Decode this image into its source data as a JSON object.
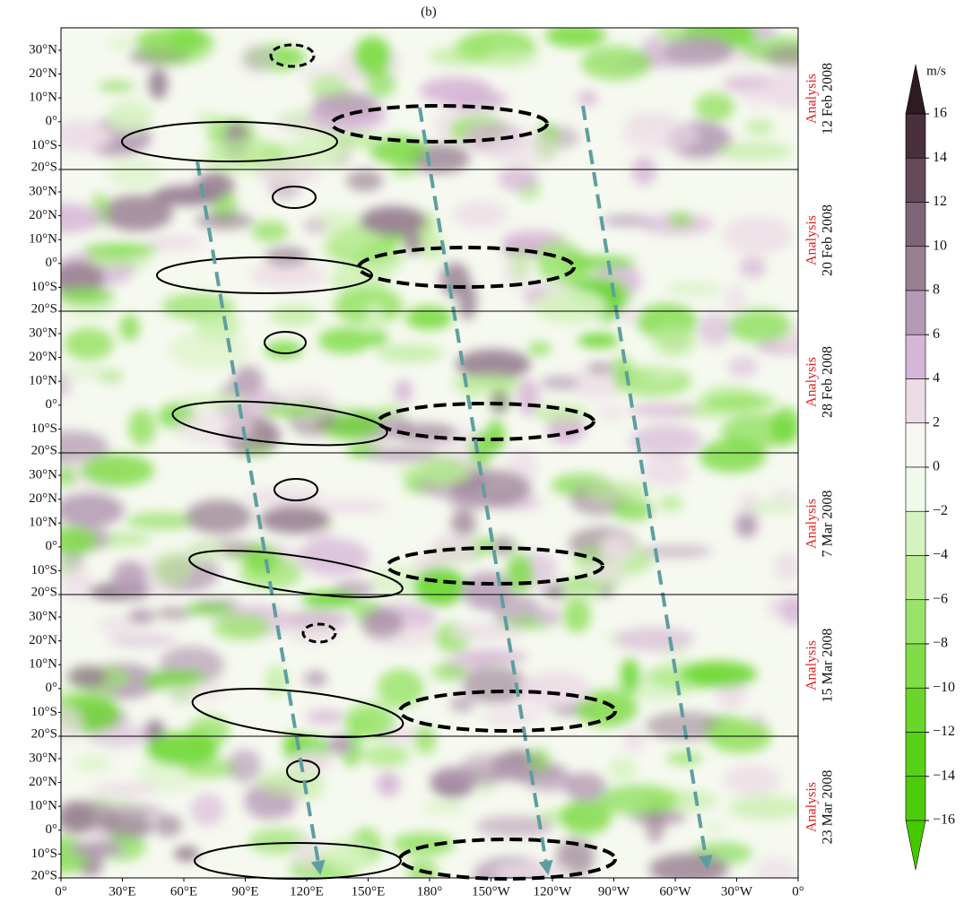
{
  "figure": {
    "title": "(b)",
    "lat_labels": [
      "30°N",
      "20°N",
      "10°N",
      "0°",
      "10°S",
      "20°S"
    ],
    "lon_labels": [
      "0°",
      "30°E",
      "60°E",
      "90°E",
      "120°E",
      "150°E",
      "180°",
      "150°W",
      "120°W",
      "90°W",
      "60°W",
      "30°W",
      "0°"
    ],
    "panels": [
      {
        "label": "Analysis",
        "date": "12 Feb 2008"
      },
      {
        "label": "Analysis",
        "date": "20 Feb 2008"
      },
      {
        "label": "Analysis",
        "date": "28 Feb 2008"
      },
      {
        "label": "Analysis",
        "date": "7 Mar 2008"
      },
      {
        "label": "Analysis",
        "date": "15 Mar 2008"
      },
      {
        "label": "Analysis",
        "date": "23 Mar 2008"
      }
    ],
    "colorbar": {
      "unit": "m/s",
      "ticks": [
        "16",
        "14",
        "12",
        "10",
        "8",
        "6",
        "4",
        "2",
        "0",
        "−2",
        "−4",
        "−6",
        "−8",
        "−10",
        "−12",
        "−14",
        "−16"
      ],
      "colors": [
        "#2d1a22",
        "#4a2f3c",
        "#654a5a",
        "#7e6478",
        "#987f92",
        "#b49ab4",
        "#d6b6d6",
        "#ecdce6",
        "#f8f6f0",
        "#f0faea",
        "#d6f2c0",
        "#b8eb94",
        "#9ae36a",
        "#80dc48",
        "#6ad62c",
        "#58d018",
        "#4ccb0c",
        "#44c800"
      ]
    }
  }
}
